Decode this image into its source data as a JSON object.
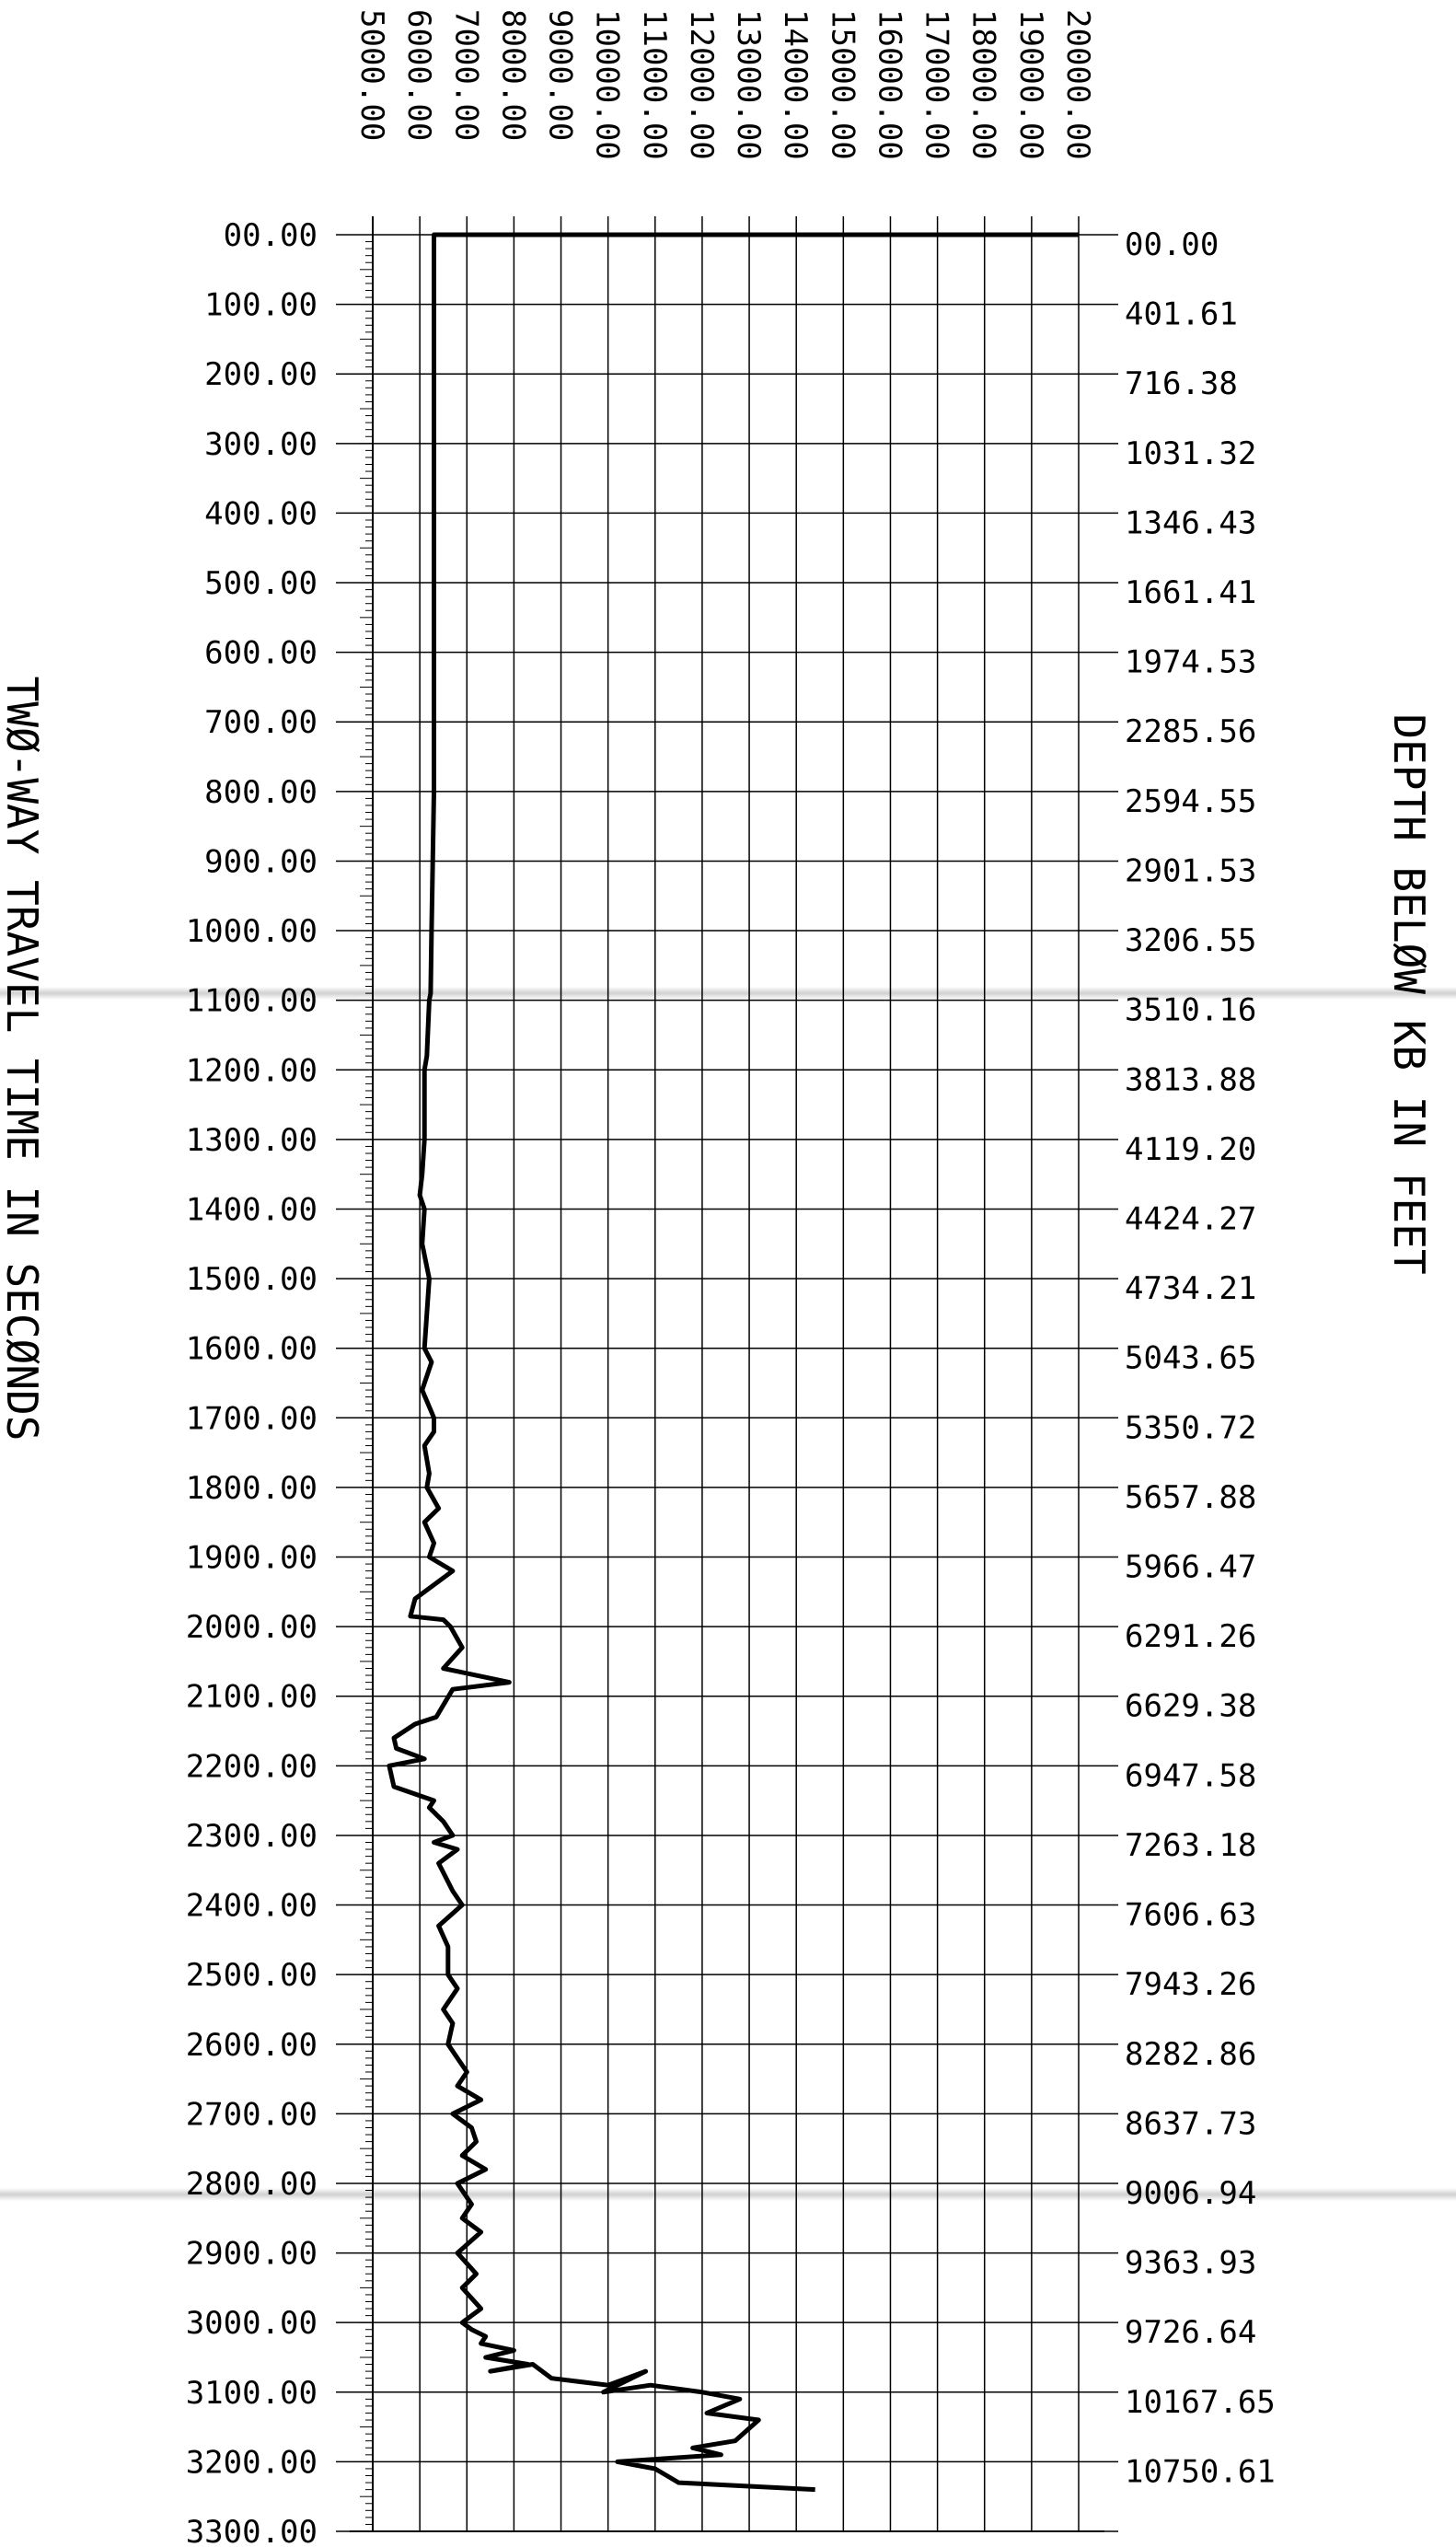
{
  "chart_data": {
    "type": "line",
    "left_axis_label": "TWØ-WAY TRAVEL TIME IN SECØNDS",
    "right_axis_label": "DEPTH BELØW KB IN FEET",
    "top_axis": {
      "ticks": [
        "5000.00",
        "6000.00",
        "7000.00",
        "8000.00",
        "9000.00",
        "10000.00",
        "11000.00",
        "12000.00",
        "13000.00",
        "14000.00",
        "15000.00",
        "16000.00",
        "17000.00",
        "18000.00",
        "19000.00",
        "20000.00"
      ],
      "range": [
        5000,
        20000
      ]
    },
    "time_axis": {
      "ticks": [
        "00.00",
        "100.00",
        "200.00",
        "300.00",
        "400.00",
        "500.00",
        "600.00",
        "700.00",
        "800.00",
        "900.00",
        "1000.00",
        "1100.00",
        "1200.00",
        "1300.00",
        "1400.00",
        "1500.00",
        "1600.00",
        "1700.00",
        "1800.00",
        "1900.00",
        "2000.00",
        "2100.00",
        "2200.00",
        "2300.00",
        "2400.00",
        "2500.00",
        "2600.00",
        "2700.00",
        "2800.00",
        "2900.00",
        "3000.00",
        "3100.00",
        "3200.00",
        "3300.00"
      ],
      "range": [
        0,
        3300
      ]
    },
    "depth_ticks": [
      "00.00",
      "401.61",
      "716.38",
      "1031.32",
      "1346.43",
      "1661.41",
      "1974.53",
      "2285.56",
      "2594.55",
      "2901.53",
      "3206.55",
      "3510.16",
      "3813.88",
      "4119.20",
      "4424.27",
      "4734.21",
      "5043.65",
      "5350.72",
      "5657.88",
      "5966.47",
      "6291.26",
      "6629.38",
      "6947.58",
      "7263.18",
      "7606.63",
      "7943.26",
      "8282.86",
      "8637.73",
      "9006.94",
      "9363.93",
      "9726.64",
      "10167.65",
      "10750.61"
    ],
    "grid": true,
    "series": [
      {
        "color": "#000000",
        "x": [
          20000,
          6300,
          6300,
          6300,
          6300,
          6300,
          6250,
          6230,
          6200,
          6150,
          6100,
          6100,
          6050,
          6000,
          6100,
          6050,
          6200,
          6150,
          6100,
          6250,
          6050,
          6300,
          6300,
          6100,
          6200,
          6150,
          6400,
          6100,
          6300,
          6200,
          6700,
          5900,
          5800,
          6500,
          6650,
          6900,
          6500,
          7900,
          6700,
          6350,
          5900,
          5450,
          5500,
          6100,
          5350,
          5450,
          6300,
          6200,
          6500,
          6700,
          6300,
          6800,
          6400,
          6700,
          6900,
          6400,
          6600,
          6600,
          6800,
          6500,
          6700,
          6600,
          6800,
          7000,
          6800,
          7300,
          6700,
          7100,
          7200,
          6900,
          7400,
          6800,
          7100,
          6900,
          7300,
          6800,
          7200,
          6900,
          7300,
          6900,
          7100,
          7400,
          7300,
          8000,
          7400,
          8300,
          7500,
          8400,
          8800,
          10000,
          10800,
          9900,
          10900,
          12000,
          12800,
          12100,
          13200,
          12700,
          11800,
          12400,
          10200,
          11000,
          11500,
          14400
        ],
        "y": [
          0,
          0,
          200,
          400,
          600,
          800,
          1000,
          1090,
          1100,
          1180,
          1200,
          1300,
          1350,
          1380,
          1400,
          1450,
          1500,
          1550,
          1600,
          1620,
          1660,
          1700,
          1720,
          1740,
          1780,
          1800,
          1830,
          1850,
          1880,
          1900,
          1920,
          1960,
          1985,
          1990,
          2000,
          2030,
          2060,
          2080,
          2090,
          2130,
          2140,
          2160,
          2175,
          2190,
          2200,
          2230,
          2250,
          2260,
          2280,
          2300,
          2310,
          2320,
          2340,
          2380,
          2400,
          2430,
          2460,
          2500,
          2520,
          2550,
          2570,
          2600,
          2620,
          2640,
          2660,
          2680,
          2700,
          2720,
          2740,
          2760,
          2780,
          2800,
          2830,
          2850,
          2870,
          2900,
          2930,
          2950,
          2980,
          3000,
          3010,
          3020,
          3030,
          3040,
          3050,
          3060,
          3070,
          3060,
          3080,
          3090,
          3070,
          3100,
          3090,
          3100,
          3110,
          3130,
          3140,
          3170,
          3180,
          3190,
          3200,
          3210,
          3230,
          3240
        ]
      }
    ]
  }
}
